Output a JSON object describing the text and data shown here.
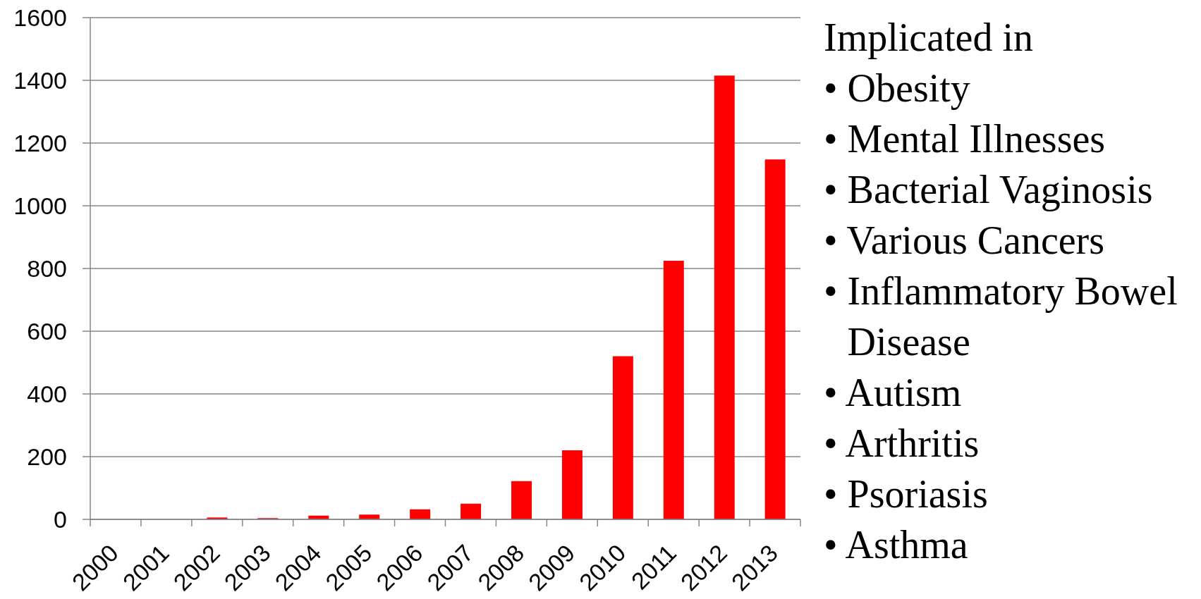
{
  "chart_data": {
    "type": "bar",
    "categories": [
      "2000",
      "2001",
      "2002",
      "2003",
      "2004",
      "2005",
      "2006",
      "2007",
      "2008",
      "2009",
      "2010",
      "2011",
      "2012",
      "2013"
    ],
    "values": [
      0,
      0,
      6,
      4,
      12,
      15,
      32,
      50,
      122,
      220,
      520,
      825,
      1415,
      1148
    ],
    "color": "#ff0000",
    "ylim": [
      0,
      1600
    ],
    "yticks": [
      0,
      200,
      400,
      600,
      800,
      1000,
      1200,
      1400,
      1600
    ],
    "grid": "y",
    "annotations": [
      "Implicated in",
      "• Obesity",
      "• Mental Illnesses",
      "• Bacterial Vaginosis",
      "• Various Cancers",
      "• Inflammatory Bowel Disease",
      "• Autism",
      "• Arthritis",
      "• Psoriasis",
      "• Asthma"
    ]
  }
}
